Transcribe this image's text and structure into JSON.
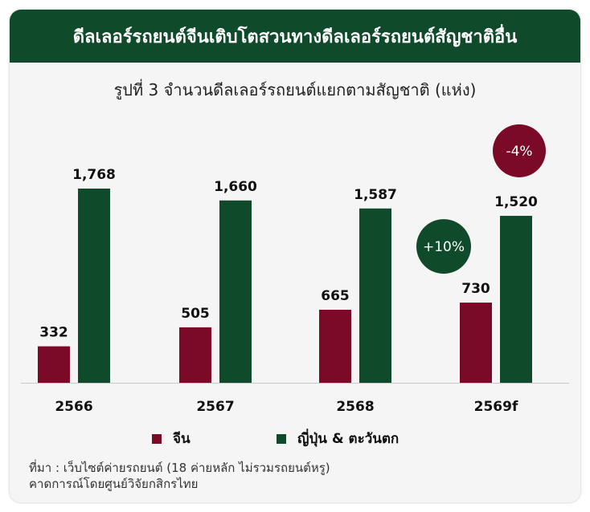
{
  "header": {
    "title": "ดีลเลอร์รถยนต์จีนเติบโตสวนทางดีลเลอร์รถยนต์สัญชาติอื่น"
  },
  "chart_data": {
    "type": "bar",
    "title": "รูปที่ 3 จำนวนดีลเลอร์รถยนต์แยกตามสัญชาติ (แห่ง)",
    "categories": [
      "2566",
      "2567",
      "2568",
      "2569f"
    ],
    "series": [
      {
        "name": "จีน",
        "values": [
          332,
          505,
          665,
          730
        ],
        "color": "#7a0a25"
      },
      {
        "name": "ญี่ปุ่น & ตะวันตก",
        "values": [
          1768,
          1660,
          1587,
          1520
        ],
        "color": "#0f4a2b"
      }
    ],
    "value_labels": [
      [
        "332",
        "505",
        "665",
        "730"
      ],
      [
        "1,768",
        "1,660",
        "1,587",
        "1,520"
      ]
    ],
    "annotations": [
      {
        "text": "+10%",
        "category": "2569f",
        "series": "จีน",
        "color": "#0f4a2b"
      },
      {
        "text": "-4%",
        "category": "2569f",
        "series": "ญี่ปุ่น & ตะวันตก",
        "color": "#7a0a25"
      }
    ],
    "ylim": [
      0,
      1768
    ],
    "grid": false,
    "legend_position": "bottom"
  },
  "source": {
    "line1": "ที่มา : เว็บไซต์ค่ายรถยนต์ (18 ค่ายหลัก ไม่รวมรถยนต์หรู)",
    "line2": "คาดการณ์โดยศูนย์วิจัยกสิกรไทย"
  }
}
